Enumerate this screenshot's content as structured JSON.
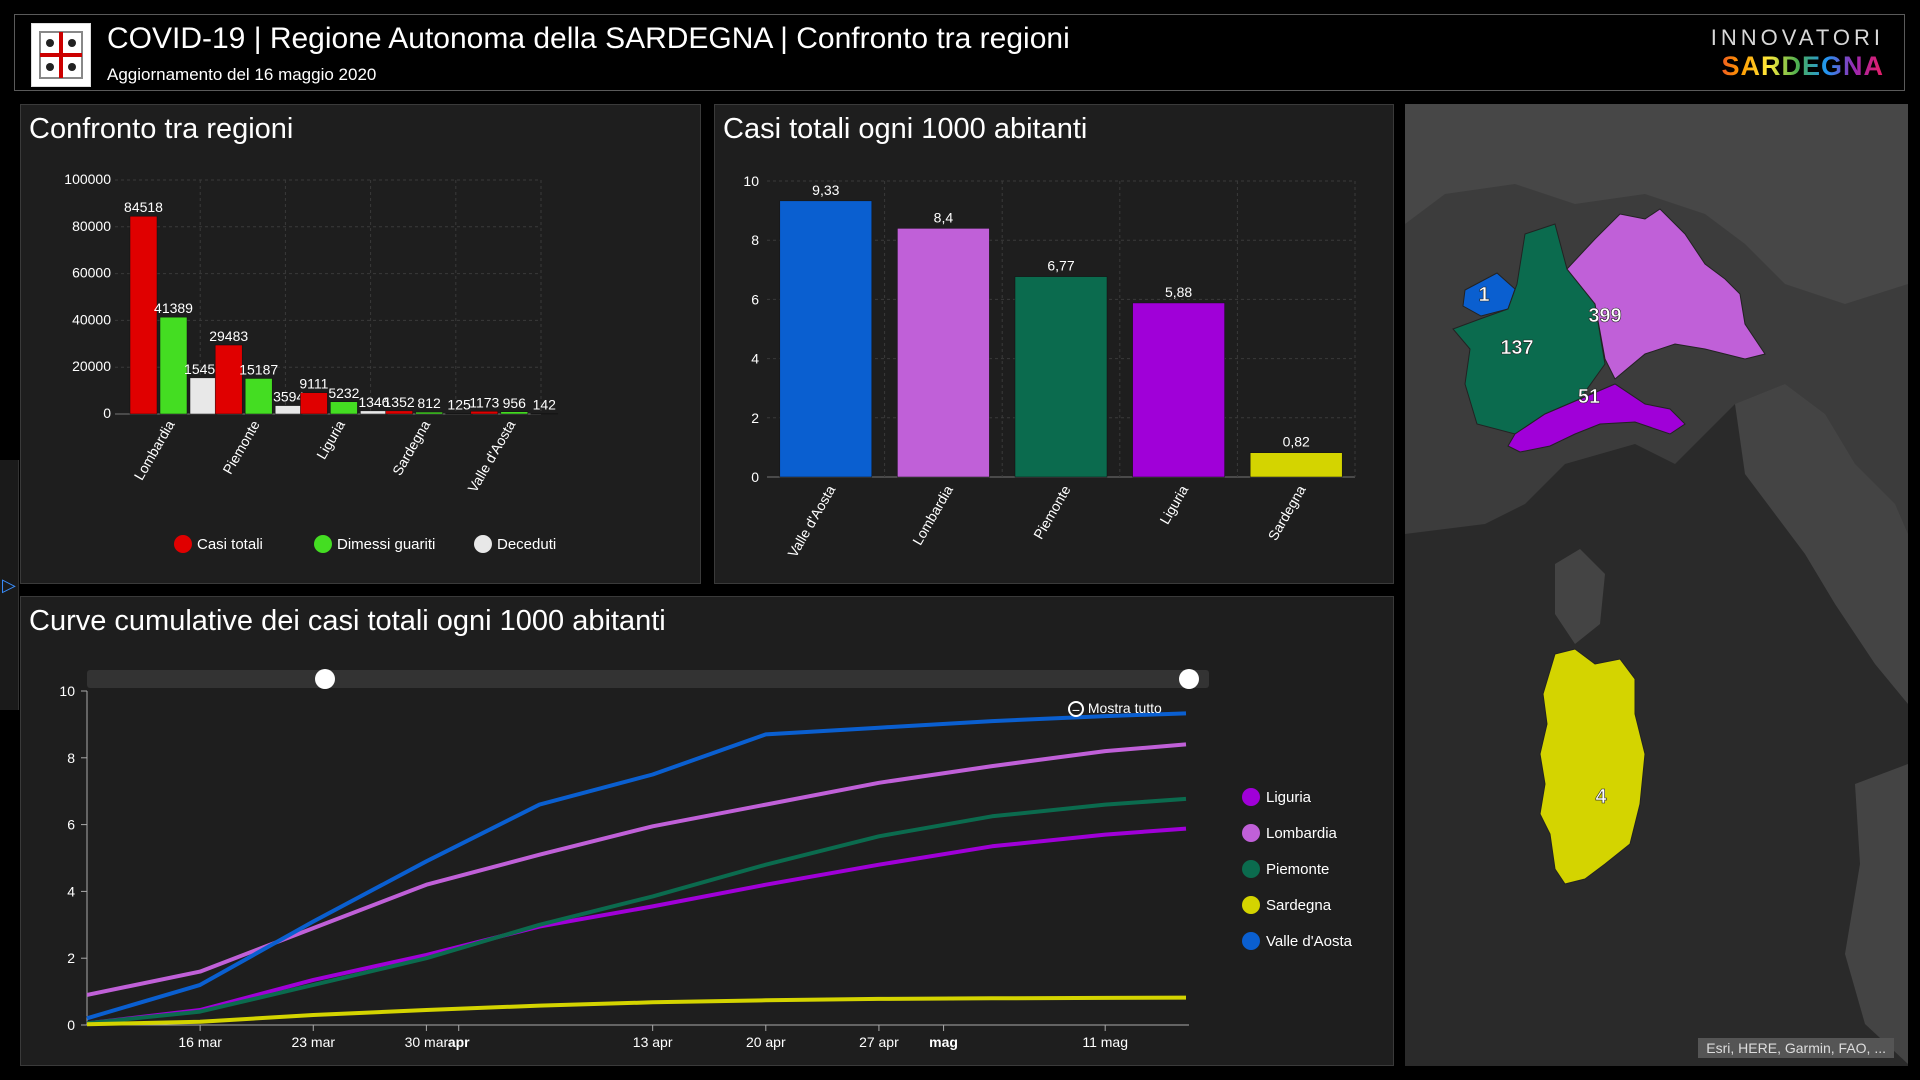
{
  "header": {
    "title": "COVID-19 | Regione Autonoma della SARDEGNA | Confronto tra regioni",
    "subtitle": "Aggiornamento del 16 maggio 2020",
    "brand_top": "INNOVATORI",
    "brand_bottom": "SARDEGNA"
  },
  "colors": {
    "casi_totali": "#e00000",
    "dimessi_guariti": "#44dd22",
    "deceduti": "#e8e8e8",
    "Valle d'Aosta": "#0a5fd0",
    "Lombardia": "#c060d8",
    "Piemonte": "#0b6b4e",
    "Liguria": "#a000d8",
    "Sardegna": "#d4d400"
  },
  "panels": {
    "confronto_title": "Confronto tra regioni",
    "casi1000_title": "Casi totali ogni 1000 abitanti",
    "curve_title": "Curve cumulative dei casi totali ogni 1000 abitanti",
    "mostra_tutto": "Mostra tutto"
  },
  "map": {
    "attribution": "Esri, HERE, Garmin, FAO, ...",
    "labels": {
      "valle": "1",
      "piemonte": "137",
      "lombardia": "399",
      "liguria": "51",
      "sardegna": "4"
    }
  },
  "chart_data": [
    {
      "type": "bar",
      "title": "Confronto tra regioni",
      "categories": [
        "Lombardia",
        "Piemonte",
        "Liguria",
        "Sardegna",
        "Valle d'Aosta"
      ],
      "ylim": [
        0,
        100000
      ],
      "yticks": [
        0,
        20000,
        40000,
        60000,
        80000,
        100000
      ],
      "grid": true,
      "legend": "bottom",
      "series": [
        {
          "name": "Casi totali",
          "values": [
            84518,
            29483,
            9111,
            1352,
            1173
          ]
        },
        {
          "name": "Dimessi guariti",
          "values": [
            41389,
            15187,
            5232,
            812,
            956
          ]
        },
        {
          "name": "Deceduti",
          "values": [
            15450,
            3594,
            1346,
            125,
            142
          ]
        }
      ]
    },
    {
      "type": "bar",
      "title": "Casi totali ogni 1000 abitanti",
      "categories": [
        "Valle d'Aosta",
        "Lombardia",
        "Piemonte",
        "Liguria",
        "Sardegna"
      ],
      "values": [
        9.33,
        8.4,
        6.77,
        5.88,
        0.82
      ],
      "labels": [
        "9,33",
        "8,4",
        "6,77",
        "5,88",
        "0,82"
      ],
      "ylim": [
        0,
        10
      ],
      "yticks": [
        0,
        2,
        4,
        6,
        8,
        10
      ],
      "grid": true
    },
    {
      "type": "line",
      "title": "Curve cumulative dei casi totali ogni 1000 abitanti",
      "x_range": [
        "2020-03-09",
        "2020-05-16"
      ],
      "ylim": [
        0,
        10
      ],
      "yticks": [
        0,
        2,
        4,
        6,
        8,
        10
      ],
      "xticks": [
        {
          "date": "2020-03-16",
          "label": "16 mar",
          "bold": false
        },
        {
          "date": "2020-03-23",
          "label": "23 mar",
          "bold": false
        },
        {
          "date": "2020-03-30",
          "label": "30 mar",
          "bold": false
        },
        {
          "date": "2020-04-01",
          "label": "apr",
          "bold": true
        },
        {
          "date": "2020-04-13",
          "label": "13 apr",
          "bold": false
        },
        {
          "date": "2020-04-20",
          "label": "20 apr",
          "bold": false
        },
        {
          "date": "2020-04-27",
          "label": "27 apr",
          "bold": false
        },
        {
          "date": "2020-05-01",
          "label": "mag",
          "bold": true
        },
        {
          "date": "2020-05-11",
          "label": "11 mag",
          "bold": false
        }
      ],
      "legend": "right",
      "series": [
        {
          "name": "Liguria",
          "x": [
            "2020-03-09",
            "2020-03-16",
            "2020-03-23",
            "2020-03-30",
            "2020-04-06",
            "2020-04-13",
            "2020-04-20",
            "2020-04-27",
            "2020-05-04",
            "2020-05-11",
            "2020-05-16"
          ],
          "values": [
            0.05,
            0.45,
            1.35,
            2.1,
            2.95,
            3.55,
            4.2,
            4.8,
            5.35,
            5.7,
            5.88
          ]
        },
        {
          "name": "Lombardia",
          "x": [
            "2020-03-09",
            "2020-03-16",
            "2020-03-23",
            "2020-03-30",
            "2020-04-06",
            "2020-04-13",
            "2020-04-20",
            "2020-04-27",
            "2020-05-04",
            "2020-05-11",
            "2020-05-16"
          ],
          "values": [
            0.9,
            1.6,
            2.9,
            4.2,
            5.1,
            5.95,
            6.6,
            7.25,
            7.75,
            8.2,
            8.4
          ]
        },
        {
          "name": "Piemonte",
          "x": [
            "2020-03-09",
            "2020-03-16",
            "2020-03-23",
            "2020-03-30",
            "2020-04-06",
            "2020-04-13",
            "2020-04-20",
            "2020-04-27",
            "2020-05-04",
            "2020-05-11",
            "2020-05-16"
          ],
          "values": [
            0.05,
            0.4,
            1.2,
            2.0,
            3.0,
            3.85,
            4.8,
            5.65,
            6.25,
            6.6,
            6.77
          ]
        },
        {
          "name": "Sardegna",
          "x": [
            "2020-03-09",
            "2020-03-16",
            "2020-03-23",
            "2020-03-30",
            "2020-04-06",
            "2020-04-13",
            "2020-04-20",
            "2020-04-27",
            "2020-05-04",
            "2020-05-11",
            "2020-05-16"
          ],
          "values": [
            0.02,
            0.1,
            0.3,
            0.45,
            0.58,
            0.68,
            0.74,
            0.78,
            0.8,
            0.81,
            0.82
          ]
        },
        {
          "name": "Valle d'Aosta",
          "x": [
            "2020-03-09",
            "2020-03-16",
            "2020-03-23",
            "2020-03-30",
            "2020-04-06",
            "2020-04-13",
            "2020-04-20",
            "2020-04-27",
            "2020-05-04",
            "2020-05-11",
            "2020-05-16"
          ],
          "values": [
            0.2,
            1.2,
            3.1,
            4.9,
            6.6,
            7.5,
            8.7,
            8.9,
            9.1,
            9.25,
            9.33
          ]
        }
      ]
    }
  ]
}
